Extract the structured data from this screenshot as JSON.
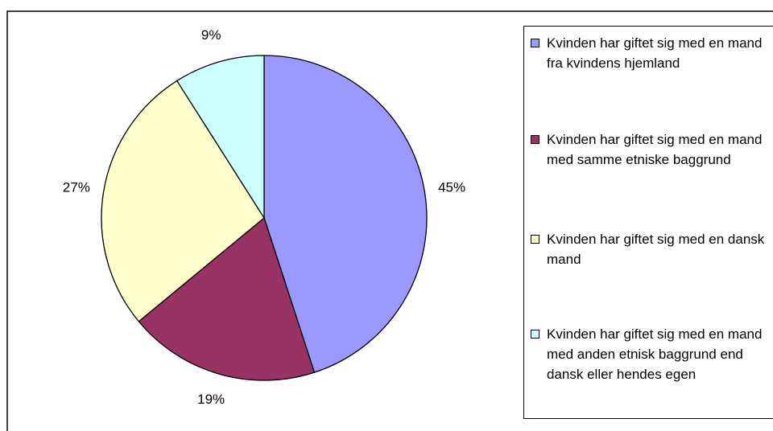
{
  "chart_data": {
    "type": "pie",
    "categories": [
      "Kvinden har giftet sig med en mand fra kvindens hjemland",
      "Kvinden har giftet sig med en mand med samme etniske baggrund",
      "Kvinden har giftet sig med en dansk mand",
      "Kvinden har giftet sig med en mand med anden etnisk baggrund end dansk eller hendes egen"
    ],
    "values": [
      45,
      19,
      27,
      9
    ],
    "value_labels": [
      "45%",
      "19%",
      "27%",
      "9%"
    ],
    "colors": [
      "#9999ff",
      "#993366",
      "#ffffcc",
      "#ccffff"
    ],
    "legend": "right"
  }
}
